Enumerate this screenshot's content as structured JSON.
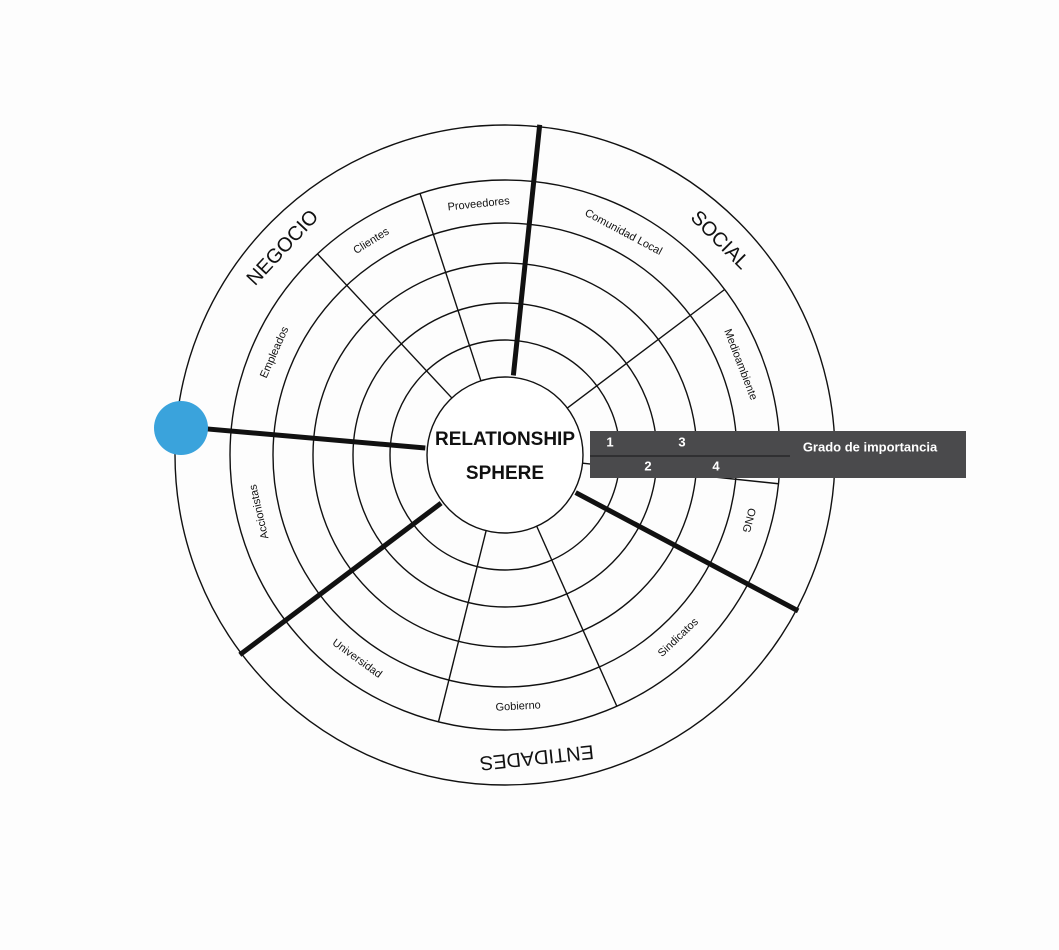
{
  "center": {
    "lines": [
      "RELATIONSHIP",
      "SPHERE"
    ]
  },
  "groups": [
    {
      "label": "NEGOCIO",
      "segments": [
        "Empleados",
        "Clientes",
        "Proveedores"
      ]
    },
    {
      "label": "SOCIAL",
      "segments": [
        "Comunidad Local",
        "Medioambiente",
        "ONG"
      ]
    },
    {
      "label": "ENTIDADES",
      "segments": [
        "Sindicatos",
        "Gobierno",
        "Universidad"
      ]
    },
    {
      "label": null,
      "segments": [
        "Accionistas"
      ]
    }
  ],
  "scale": {
    "title": "Grado de importancia",
    "levels": [
      1,
      2,
      3,
      4
    ]
  }
}
